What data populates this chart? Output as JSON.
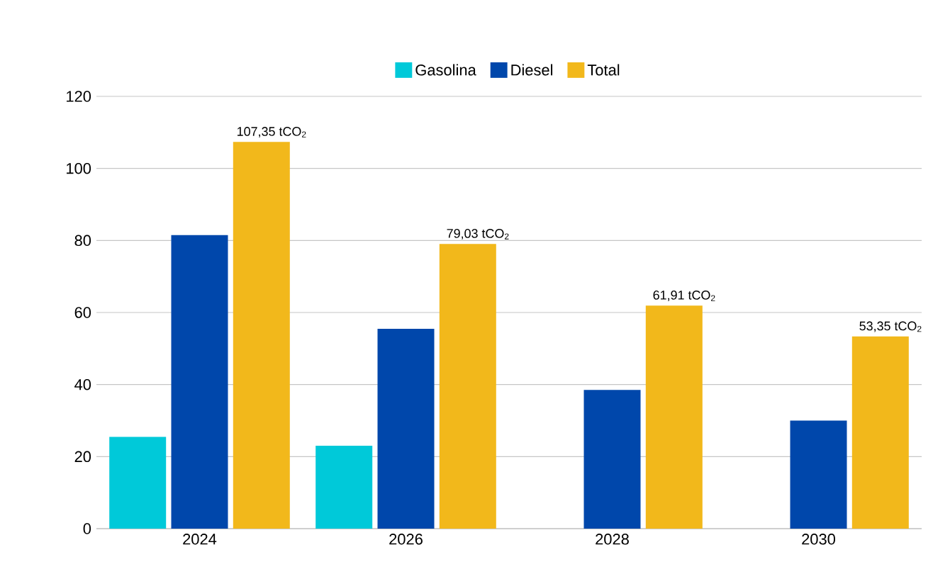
{
  "chart_data": {
    "type": "bar",
    "categories": [
      "2024",
      "2026",
      "2028",
      "2030"
    ],
    "series": [
      {
        "name": "Gasolina",
        "color": "#00c9d9",
        "values": [
          25.5,
          23,
          null,
          null
        ]
      },
      {
        "name": "Diesel",
        "color": "#0047ab",
        "values": [
          81.5,
          55.5,
          38.5,
          30
        ]
      },
      {
        "name": "Total",
        "color": "#f2b81b",
        "values": [
          107.35,
          79.03,
          61.91,
          53.35
        ],
        "value_labels": [
          "107,35 tCO$_{2}$",
          "79,03 tCO$_{2}$",
          "61,91 tCO$_{2}$",
          "53,35 tCO$_{2}$"
        ]
      }
    ],
    "ylim": [
      0,
      120
    ],
    "yticks": [
      0,
      20,
      40,
      60,
      80,
      100,
      120
    ],
    "grid": "y",
    "legend": "top"
  }
}
